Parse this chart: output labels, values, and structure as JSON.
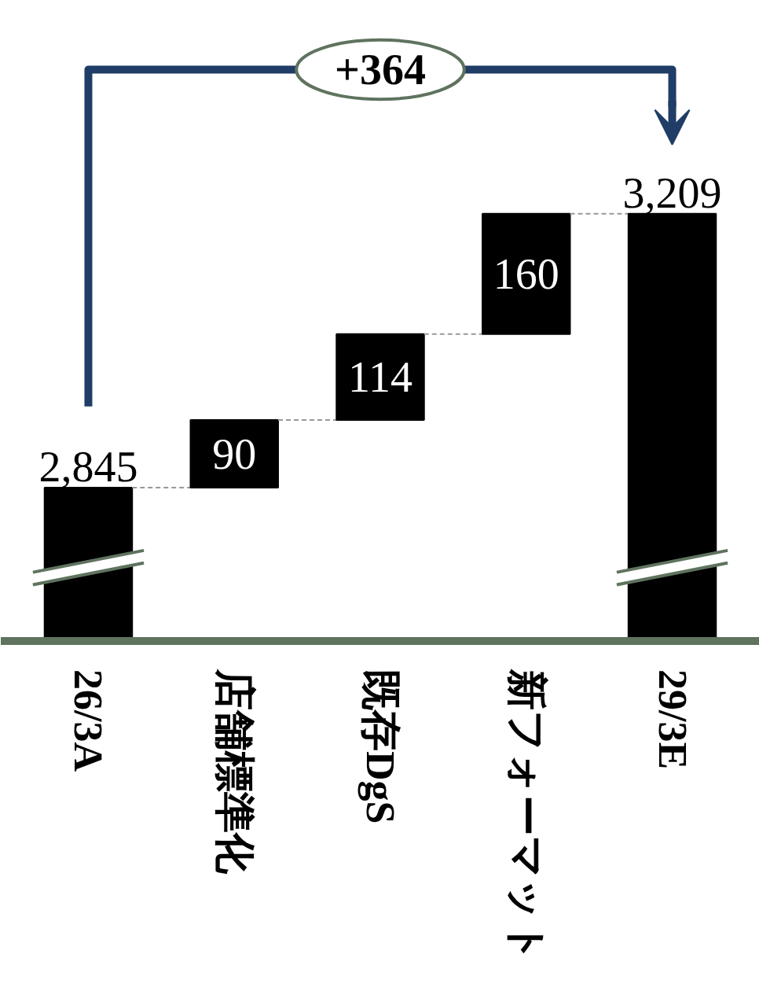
{
  "chart_data": {
    "type": "other",
    "categories": [
      "26/3A",
      "店舗標準化",
      "既存DgS",
      "新フォーマット",
      "29/3E"
    ],
    "values": [
      2845,
      90,
      114,
      160,
      3209
    ],
    "value_labels": [
      "2,845",
      "90",
      "114",
      "160",
      "3,209"
    ],
    "color": "#000000",
    "annotations": [
      "+364"
    ]
  }
}
